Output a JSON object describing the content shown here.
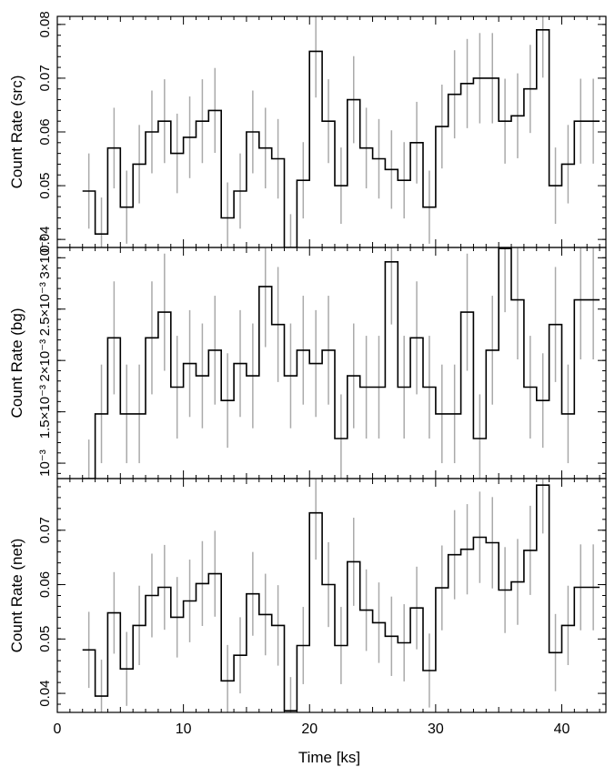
{
  "chart_data": {
    "type": "line",
    "xlabel": "Time [ks]",
    "xlim": [
      0,
      43.5
    ],
    "x_ticks": [
      "0",
      "10",
      "20",
      "30",
      "40"
    ],
    "bins": [
      2.5,
      3.5,
      4.5,
      5.5,
      6.5,
      7.5,
      8.5,
      9.5,
      10.5,
      11.5,
      12.5,
      13.5,
      14.5,
      15.5,
      16.5,
      17.5,
      18.5,
      19.5,
      20.5,
      21.5,
      22.5,
      23.5,
      24.5,
      25.5,
      26.5,
      27.5,
      28.5,
      29.5,
      30.5,
      31.5,
      32.5,
      33.5,
      34.5,
      35.5,
      36.5,
      37.5,
      38.5,
      39.5,
      40.5,
      41.5,
      42.5
    ],
    "bin_width": 1.0,
    "panels": [
      {
        "ylabel": "Count Rate (src)",
        "ylim": [
          0.0385,
          0.0815
        ],
        "y_ticks": [
          {
            "value": 0.04,
            "label": "0.04"
          },
          {
            "value": 0.05,
            "label": "0.05"
          },
          {
            "value": 0.06,
            "label": "0.06"
          },
          {
            "value": 0.07,
            "label": "0.07"
          },
          {
            "value": 0.08,
            "label": "0.08"
          }
        ],
        "values": [
          0.049,
          0.041,
          0.057,
          0.046,
          0.054,
          0.06,
          0.062,
          0.056,
          0.059,
          0.062,
          0.064,
          0.044,
          0.049,
          0.06,
          0.057,
          0.055,
          0.0385,
          0.051,
          0.075,
          0.062,
          0.05,
          0.066,
          0.057,
          0.055,
          0.053,
          0.051,
          0.058,
          0.046,
          0.061,
          0.067,
          0.069,
          0.07,
          0.07,
          0.062,
          0.063,
          0.068,
          0.079,
          0.05,
          0.054,
          0.062,
          0.062
        ],
        "errors": [
          0.007,
          0.0068,
          0.0075,
          0.0068,
          0.0073,
          0.0077,
          0.0078,
          0.0074,
          0.0076,
          0.0078,
          0.0079,
          0.0066,
          0.007,
          0.0077,
          0.0075,
          0.0074,
          0.0062,
          0.0071,
          0.0086,
          0.0078,
          0.0071,
          0.0081,
          0.0075,
          0.0074,
          0.0073,
          0.0071,
          0.0076,
          0.0068,
          0.0078,
          0.0082,
          0.0083,
          0.0084,
          0.0084,
          0.0079,
          0.0079,
          0.0082,
          0.0089,
          0.0071,
          0.0073,
          0.0079,
          0.0079
        ]
      },
      {
        "ylabel": "Count Rate (bg)",
        "ylim": [
          0.00085,
          0.0031
        ],
        "y_ticks": [
          {
            "value": 0.001,
            "label": "10⁻³"
          },
          {
            "value": 0.0015,
            "label": "1.5×10⁻³"
          },
          {
            "value": 0.002,
            "label": "2×10⁻³"
          },
          {
            "value": 0.0025,
            "label": "2.5×10⁻³"
          },
          {
            "value": 0.003,
            "label": "3×10⁻³"
          }
        ],
        "values": [
          0.00085,
          0.00148,
          0.00222,
          0.00148,
          0.00148,
          0.00222,
          0.00247,
          0.00174,
          0.00197,
          0.00185,
          0.0021,
          0.00161,
          0.00197,
          0.00185,
          0.00272,
          0.00235,
          0.00185,
          0.0021,
          0.00197,
          0.0021,
          0.00124,
          0.00185,
          0.00174,
          0.00174,
          0.00296,
          0.00174,
          0.00222,
          0.00174,
          0.00148,
          0.00148,
          0.00247,
          0.00124,
          0.0021,
          0.00309,
          0.00259,
          0.00174,
          0.00161,
          0.00235,
          0.00148,
          0.00259,
          0.00259
        ],
        "errors": [
          0.00038,
          0.00048,
          0.00055,
          0.00048,
          0.00048,
          0.00055,
          0.00057,
          0.0005,
          0.00052,
          0.00051,
          0.00053,
          0.00046,
          0.00052,
          0.00051,
          0.00059,
          0.00056,
          0.00051,
          0.00053,
          0.00052,
          0.00053,
          0.00043,
          0.00051,
          0.0005,
          0.0005,
          0.00061,
          0.0005,
          0.00055,
          0.0005,
          0.00048,
          0.00048,
          0.00057,
          0.00043,
          0.00053,
          0.00062,
          0.00058,
          0.0005,
          0.00046,
          0.00056,
          0.00048,
          0.00058,
          0.00058
        ]
      },
      {
        "ylabel": "Count Rate (net)",
        "ylim": [
          0.0365,
          0.0795
        ],
        "y_ticks": [
          {
            "value": 0.04,
            "label": "0.04"
          },
          {
            "value": 0.05,
            "label": "0.05"
          },
          {
            "value": 0.06,
            "label": "0.06"
          },
          {
            "value": 0.07,
            "label": "0.07"
          }
        ],
        "values": [
          0.048,
          0.0395,
          0.0548,
          0.0445,
          0.0525,
          0.058,
          0.0595,
          0.054,
          0.057,
          0.0602,
          0.062,
          0.0423,
          0.047,
          0.0583,
          0.0545,
          0.0525,
          0.0368,
          0.0488,
          0.0732,
          0.06,
          0.0488,
          0.0642,
          0.0553,
          0.053,
          0.0505,
          0.0493,
          0.0557,
          0.0442,
          0.0594,
          0.0655,
          0.0665,
          0.0687,
          0.0677,
          0.059,
          0.0605,
          0.0663,
          0.0783,
          0.0475,
          0.0525,
          0.0595,
          0.0595
        ],
        "errors": [
          0.007,
          0.0067,
          0.0075,
          0.0068,
          0.0073,
          0.0077,
          0.0078,
          0.0074,
          0.0076,
          0.0078,
          0.0079,
          0.0066,
          0.007,
          0.0077,
          0.0075,
          0.0074,
          0.0062,
          0.0071,
          0.0086,
          0.0078,
          0.0071,
          0.0081,
          0.0075,
          0.0074,
          0.0073,
          0.0071,
          0.0076,
          0.0068,
          0.0078,
          0.0082,
          0.0083,
          0.0084,
          0.0084,
          0.0079,
          0.0079,
          0.0082,
          0.0089,
          0.0071,
          0.0073,
          0.0079,
          0.0079
        ]
      }
    ]
  }
}
